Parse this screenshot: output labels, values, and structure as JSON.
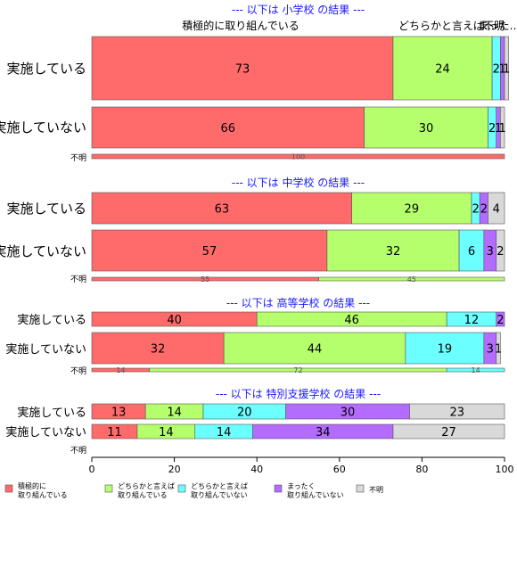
{
  "chart_data": {
    "type": "bar",
    "orientation": "horizontal",
    "stacked": true,
    "xlim": [
      0,
      100
    ],
    "x_ticks": [
      "0",
      "20",
      "40",
      "60",
      "80",
      "100"
    ],
    "series": [
      {
        "name": "積極的に\n取り組んでいる",
        "color": "#ff6b6b"
      },
      {
        "name": "どちらかと言えば\n取り組んでいる",
        "color": "#b4ff6b"
      },
      {
        "name": "どちらかと言えば\n取り組んでいない",
        "color": "#6bffff"
      },
      {
        "name": "まったく\n取り組んでいない",
        "color": "#b46bff"
      },
      {
        "name": "不明",
        "color": "#d9d9d9"
      }
    ],
    "top_labels": [
      "積極的に取り組んでいる",
      "どちらかと言えば…",
      "まった…",
      "不明"
    ],
    "panels": [
      {
        "title": "--- 以下は 小学校 の結果 ---",
        "rows": [
          {
            "label": "実施している",
            "values": [
              73,
              24,
              2,
              1,
              1
            ]
          },
          {
            "label": "実施していない",
            "values": [
              66,
              30,
              2,
              1,
              1
            ]
          },
          {
            "label": "不明",
            "values": [
              100,
              0,
              0,
              0,
              0
            ]
          }
        ]
      },
      {
        "title": "--- 以下は 中学校 の結果 ---",
        "rows": [
          {
            "label": "実施している",
            "values": [
              63,
              29,
              2,
              2,
              4
            ]
          },
          {
            "label": "実施していない",
            "values": [
              57,
              32,
              6,
              3,
              2
            ]
          },
          {
            "label": "不明",
            "values": [
              55,
              45,
              0,
              0,
              0
            ]
          }
        ]
      },
      {
        "title": "--- 以下は 高等学校 の結果 ---",
        "rows": [
          {
            "label": "実施している",
            "values": [
              40,
              46,
              12,
              2,
              0
            ]
          },
          {
            "label": "実施していない",
            "values": [
              32,
              44,
              19,
              3,
              1
            ]
          },
          {
            "label": "不明",
            "values": [
              14,
              72,
              14,
              0,
              0
            ]
          }
        ]
      },
      {
        "title": "--- 以下は 特別支援学校 の結果 ---",
        "rows": [
          {
            "label": "実施している",
            "values": [
              13,
              14,
              20,
              30,
              23
            ]
          },
          {
            "label": "実施していない",
            "values": [
              11,
              14,
              14,
              34,
              27
            ]
          },
          {
            "label": "不明",
            "values": [
              0,
              0,
              0,
              0,
              0
            ]
          }
        ]
      }
    ]
  }
}
